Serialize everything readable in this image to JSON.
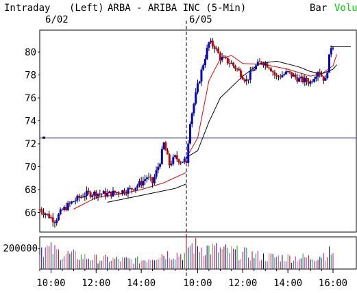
{
  "header": {
    "interval_label": "Intraday",
    "axis_side": "(Left)",
    "symbol_title": "ARBA - ARIBA INC (5-Min)",
    "style_label": "Bar",
    "volume_label": "Volu"
  },
  "colors": {
    "up_bar": "#0000cc",
    "down_bar": "#cc0000",
    "ma_fast": "#dd0000",
    "ma_slow": "#000000",
    "ref_line": "#000080",
    "volume_label": "#00cc00"
  },
  "chart_data": [
    {
      "type": "candlestick",
      "title": "ARBA - ARIBA INC (5-Min)",
      "y_ticks": [
        "66",
        "68",
        "70",
        "72",
        "74",
        "76",
        "78",
        "80"
      ],
      "ylim": [
        64.5,
        81.5
      ],
      "x_tick_labels": [
        "10:00",
        "12:00",
        "14:00",
        "10:00",
        "12:00",
        "14:00",
        "16:00"
      ],
      "day_labels": [
        {
          "label": "6/02",
          "time": "6/02 09:30"
        },
        {
          "label": "6/05",
          "time": "6/05 09:30"
        }
      ],
      "reference_line": 72.5,
      "days": [
        {
          "date": "6/02",
          "close_path": [
            {
              "t": "09:30",
              "v": 66.3
            },
            {
              "t": "09:50",
              "v": 65.8
            },
            {
              "t": "10:10",
              "v": 65.3
            },
            {
              "t": "10:30",
              "v": 66.2
            },
            {
              "t": "11:00",
              "v": 67.0
            },
            {
              "t": "11:30",
              "v": 67.6
            },
            {
              "t": "12:00",
              "v": 67.7
            },
            {
              "t": "12:30",
              "v": 67.6
            },
            {
              "t": "13:00",
              "v": 67.8
            },
            {
              "t": "13:30",
              "v": 68.0
            },
            {
              "t": "14:00",
              "v": 68.6
            },
            {
              "t": "14:15",
              "v": 69.1
            },
            {
              "t": "14:30",
              "v": 68.6
            },
            {
              "t": "14:50",
              "v": 70.5
            },
            {
              "t": "15:00",
              "v": 72.0
            },
            {
              "t": "15:15",
              "v": 70.2
            },
            {
              "t": "15:30",
              "v": 70.8
            },
            {
              "t": "15:45",
              "v": 70.5
            },
            {
              "t": "16:00",
              "v": 70.6
            }
          ],
          "ma_fast": [
            {
              "t": "11:00",
              "v": 66.3
            },
            {
              "t": "12:00",
              "v": 67.3
            },
            {
              "t": "13:00",
              "v": 67.6
            },
            {
              "t": "14:00",
              "v": 68.0
            },
            {
              "t": "15:00",
              "v": 68.6
            },
            {
              "t": "16:00",
              "v": 69.5
            }
          ],
          "ma_slow": [
            {
              "t": "12:30",
              "v": 66.9
            },
            {
              "t": "13:30",
              "v": 67.3
            },
            {
              "t": "14:30",
              "v": 67.7
            },
            {
              "t": "15:30",
              "v": 68.1
            },
            {
              "t": "16:00",
              "v": 68.5
            }
          ]
        },
        {
          "date": "6/05",
          "close_path": [
            {
              "t": "09:30",
              "v": 70.5
            },
            {
              "t": "09:40",
              "v": 74.0
            },
            {
              "t": "10:00",
              "v": 77.0
            },
            {
              "t": "10:15",
              "v": 79.0
            },
            {
              "t": "10:30",
              "v": 80.8
            },
            {
              "t": "10:45",
              "v": 80.5
            },
            {
              "t": "11:00",
              "v": 79.5
            },
            {
              "t": "11:30",
              "v": 79.0
            },
            {
              "t": "11:50",
              "v": 78.3
            },
            {
              "t": "12:10",
              "v": 77.5
            },
            {
              "t": "12:30",
              "v": 78.6
            },
            {
              "t": "12:50",
              "v": 79.2
            },
            {
              "t": "13:10",
              "v": 78.8
            },
            {
              "t": "13:30",
              "v": 77.8
            },
            {
              "t": "14:00",
              "v": 78.2
            },
            {
              "t": "14:30",
              "v": 77.6
            },
            {
              "t": "15:00",
              "v": 77.4
            },
            {
              "t": "15:20",
              "v": 78.4
            },
            {
              "t": "15:40",
              "v": 77.5
            },
            {
              "t": "15:55",
              "v": 80.5
            },
            {
              "t": "16:00",
              "v": 80.6
            }
          ],
          "ma_fast": [
            {
              "t": "09:30",
              "v": 70.8
            },
            {
              "t": "10:00",
              "v": 72.5
            },
            {
              "t": "10:30",
              "v": 77.5
            },
            {
              "t": "11:00",
              "v": 79.4
            },
            {
              "t": "11:30",
              "v": 79.7
            },
            {
              "t": "12:00",
              "v": 79.0
            },
            {
              "t": "13:00",
              "v": 78.9
            },
            {
              "t": "14:00",
              "v": 78.5
            },
            {
              "t": "15:00",
              "v": 77.9
            },
            {
              "t": "15:30",
              "v": 78.1
            },
            {
              "t": "16:00",
              "v": 78.8
            },
            {
              "t": "16:10",
              "v": 79.8
            }
          ],
          "ma_slow": [
            {
              "t": "09:30",
              "v": 70.8
            },
            {
              "t": "10:00",
              "v": 71.4
            },
            {
              "t": "10:30",
              "v": 73.9
            },
            {
              "t": "11:00",
              "v": 76.0
            },
            {
              "t": "12:00",
              "v": 77.9
            },
            {
              "t": "12:45",
              "v": 79.0
            },
            {
              "t": "13:30",
              "v": 79.2
            },
            {
              "t": "14:30",
              "v": 78.7
            },
            {
              "t": "15:00",
              "v": 78.3
            },
            {
              "t": "15:30",
              "v": 78.1
            },
            {
              "t": "16:00",
              "v": 78.5
            },
            {
              "t": "16:10",
              "v": 78.9
            }
          ]
        }
      ],
      "last_price": 80.5
    },
    {
      "type": "bar",
      "title": "Volume",
      "y_ticks": [
        "200000"
      ],
      "ylim": [
        0,
        310000
      ],
      "profile": [
        {
          "date": "6/02",
          "t": "09:30",
          "v": 260000
        },
        {
          "date": "6/02",
          "t": "10:30",
          "v": 180000
        },
        {
          "date": "6/02",
          "t": "12:00",
          "v": 120000
        },
        {
          "date": "6/02",
          "t": "14:00",
          "v": 100000
        },
        {
          "date": "6/02",
          "t": "15:00",
          "v": 180000
        },
        {
          "date": "6/02",
          "t": "16:00",
          "v": 170000
        },
        {
          "date": "6/05",
          "t": "09:30",
          "v": 280000
        },
        {
          "date": "6/05",
          "t": "11:00",
          "v": 220000
        },
        {
          "date": "6/05",
          "t": "13:00",
          "v": 140000
        },
        {
          "date": "6/05",
          "t": "15:00",
          "v": 130000
        },
        {
          "date": "6/05",
          "t": "16:00",
          "v": 200000
        }
      ]
    }
  ]
}
